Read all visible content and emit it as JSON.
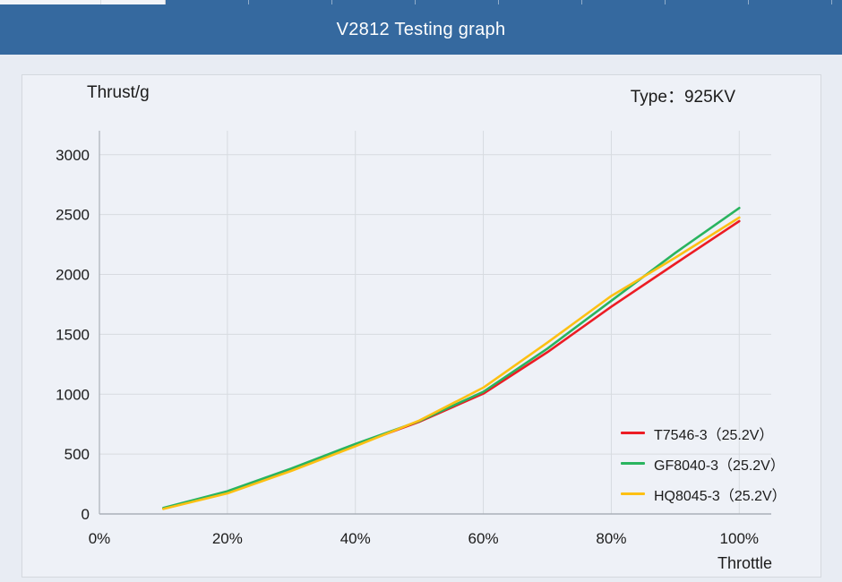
{
  "header": {
    "title": "V2812 Testing graph"
  },
  "panel": {
    "y_axis_title": "Thrust/g",
    "type_label": "Type：925KV",
    "x_axis_title": "Throttle"
  },
  "colors": {
    "header_bg": "#35699f",
    "page_bg": "#e8ecf3",
    "card_bg": "#eef1f7",
    "card_border": "#d4d8de",
    "grid_line": "#d7dbe0",
    "axis_line": "#aab0b8",
    "text": "#1b1b1b",
    "series_red": "#ec1c24",
    "series_green": "#29b45f",
    "series_yellow": "#fdc013"
  },
  "chart_data": {
    "type": "line",
    "title": "V2812 Testing graph",
    "xlabel": "Throttle",
    "ylabel": "Thrust/g",
    "annotation": "Type：925KV",
    "x": [
      10,
      20,
      30,
      40,
      50,
      60,
      70,
      80,
      90,
      100
    ],
    "x_tick_values": [
      0,
      20,
      40,
      60,
      80,
      100
    ],
    "x_tick_labels": [
      "0%",
      "20%",
      "40%",
      "60%",
      "80%",
      "100%"
    ],
    "y_tick_values": [
      0,
      500,
      1000,
      1500,
      2000,
      2500,
      3000
    ],
    "y_tick_labels": [
      "0",
      "500",
      "1000",
      "1500",
      "2000",
      "2500",
      "3000"
    ],
    "xlim": [
      0,
      105
    ],
    "ylim": [
      0,
      3200
    ],
    "grid": true,
    "legend_position": "lower-right-inside",
    "series": [
      {
        "name": "T7546-3（25.2V）",
        "color": "#ec1c24",
        "values": [
          45,
          180,
          370,
          575,
          770,
          1005,
          1350,
          1730,
          2090,
          2445
        ]
      },
      {
        "name": "GF8040-3（25.2V）",
        "color": "#29b45f",
        "values": [
          50,
          190,
          380,
          585,
          775,
          1020,
          1380,
          1780,
          2180,
          2555
        ]
      },
      {
        "name": "HQ8045-3（25.2V）",
        "color": "#fdc013",
        "values": [
          42,
          172,
          360,
          565,
          780,
          1055,
          1430,
          1820,
          2140,
          2475
        ]
      }
    ]
  }
}
